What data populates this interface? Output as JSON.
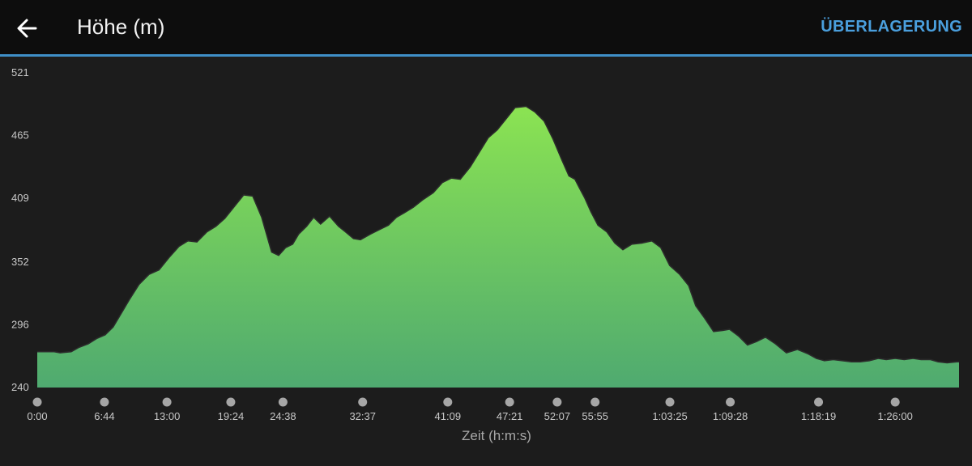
{
  "header": {
    "title": "Höhe (m)",
    "overlay_label": "ÜBERLAGERUNG",
    "back_icon": "arrow-left-icon"
  },
  "colors": {
    "background": "#1c1c1c",
    "header_background": "#0d0d0d",
    "accent": "#3f8fc7",
    "overlay_text": "#4a9fdd",
    "fill_top": "#8be352",
    "fill_bottom": "#4faa70",
    "tick_dot": "#a6a6a6"
  },
  "chart_data": {
    "type": "area",
    "title": "",
    "xlabel": "Zeit (h:m:s)",
    "ylabel": "",
    "ylim": [
      240,
      521
    ],
    "yticks": [
      240,
      296,
      352,
      409,
      465,
      521
    ],
    "xlim_minutes": [
      0,
      92.4
    ],
    "xticks": [
      {
        "label": "0:00",
        "minutes": 0
      },
      {
        "label": "6:44",
        "minutes": 6.733
      },
      {
        "label": "13:00",
        "minutes": 13.0
      },
      {
        "label": "19:24",
        "minutes": 19.4
      },
      {
        "label": "24:38",
        "minutes": 24.633
      },
      {
        "label": "32:37",
        "minutes": 32.617
      },
      {
        "label": "41:09",
        "minutes": 41.15
      },
      {
        "label": "47:21",
        "minutes": 47.35
      },
      {
        "label": "52:07",
        "minutes": 52.117
      },
      {
        "label": "55:55",
        "minutes": 55.917
      },
      {
        "label": "1:03:25",
        "minutes": 63.417
      },
      {
        "label": "1:09:28",
        "minutes": 69.467
      },
      {
        "label": "1:18:19",
        "minutes": 78.317
      },
      {
        "label": "1:26:00",
        "minutes": 86.0
      }
    ],
    "series": [
      {
        "x_minutes": [
          0,
          1.7,
          2.3,
          3.4,
          4.2,
          5.1,
          6.0,
          6.8,
          7.6,
          8.4,
          9.2,
          10.2,
          11.2,
          12.2,
          13.2,
          14.2,
          15.1,
          16.0,
          17.0,
          17.9,
          18.8,
          19.7,
          20.7,
          21.6,
          22.5,
          23.5,
          24.2,
          24.9,
          25.6,
          26.2,
          27.0,
          27.7,
          28.4,
          29.3,
          30.2,
          30.9,
          31.7,
          32.4,
          33.4,
          34.3,
          35.2,
          36.0,
          36.8,
          37.7,
          38.7,
          39.7,
          40.6,
          41.5,
          42.4,
          43.4,
          44.3,
          45.2,
          46.1,
          47.0,
          47.9,
          49.0,
          49.9,
          50.8,
          51.7,
          52.6,
          53.3,
          53.9,
          54.3,
          54.9,
          55.5,
          56.2,
          57.1,
          57.9,
          58.7,
          59.6,
          60.6,
          61.6,
          62.5,
          63.4,
          64.4,
          65.3,
          66.0,
          66.9,
          67.8,
          68.7,
          69.4,
          70.3,
          71.2,
          72.1,
          73.0,
          74.0,
          75.1,
          76.2,
          77.3,
          78.1,
          78.9,
          79.8,
          80.7,
          81.6,
          82.5,
          83.4,
          84.3,
          85.1,
          86.0,
          86.9,
          87.8,
          88.6,
          89.5,
          90.3,
          91.2,
          92.2,
          92.4
        ],
        "values": [
          272,
          272,
          271,
          272,
          276,
          279,
          284,
          287,
          294,
          306,
          318,
          332,
          341,
          345,
          356,
          366,
          371,
          370,
          379,
          384,
          391,
          401,
          412,
          411,
          392,
          361,
          358,
          365,
          368,
          377,
          384,
          392,
          386,
          393,
          384,
          379,
          373,
          372,
          377,
          381,
          385,
          392,
          396,
          401,
          408,
          414,
          423,
          427,
          426,
          437,
          450,
          463,
          470,
          480,
          490,
          491,
          486,
          478,
          462,
          443,
          429,
          426,
          419,
          409,
          397,
          385,
          379,
          369,
          363,
          368,
          369,
          371,
          365,
          349,
          341,
          331,
          313,
          302,
          290,
          291,
          292,
          286,
          278,
          281,
          285,
          279,
          271,
          274,
          270,
          266,
          264,
          265,
          264,
          263,
          263,
          264,
          266,
          265,
          266,
          265,
          266,
          265,
          265,
          263,
          262,
          263,
          263
        ]
      }
    ]
  }
}
